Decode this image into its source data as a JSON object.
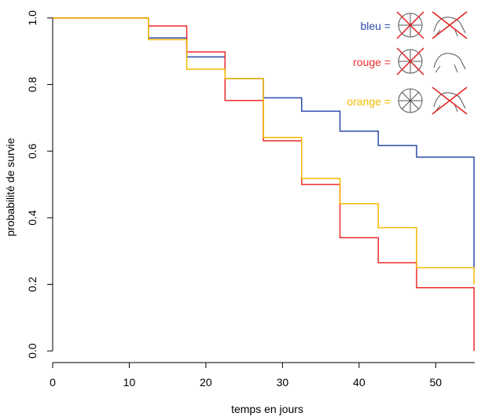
{
  "chart_data": {
    "type": "step",
    "x_label": "temps en jours",
    "y_label": "probabilité de survie",
    "x": [
      0,
      12.5,
      17.5,
      22.5,
      27.5,
      32.5,
      37.5,
      42.5,
      47.5,
      55
    ],
    "series": [
      {
        "name": "bleu =",
        "color": "#2b4aa8",
        "values": [
          1.0,
          0.94,
          0.883,
          0.818,
          0.76,
          0.72,
          0.66,
          0.617,
          0.582,
          0.25
        ]
      },
      {
        "name": "rouge =",
        "color": "#ee2c2c",
        "values": [
          1.0,
          0.976,
          0.898,
          0.752,
          0.631,
          0.5,
          0.34,
          0.265,
          0.19,
          0.0
        ]
      },
      {
        "name": "orange =",
        "color": "#f5b800",
        "values": [
          1.0,
          0.935,
          0.846,
          0.818,
          0.641,
          0.518,
          0.442,
          0.37,
          0.25,
          0.2
        ]
      }
    ],
    "xlim": [
      0,
      55.1
    ],
    "xticks": [
      0,
      10,
      20,
      30,
      40,
      50
    ],
    "ylim": [
      -0.035,
      1.035
    ],
    "yticks": [
      {
        "value": 0,
        "label": "0.0"
      },
      0.2,
      0.4,
      0.6,
      0.8,
      {
        "value": 1,
        "label": "1.0"
      }
    ]
  }
}
